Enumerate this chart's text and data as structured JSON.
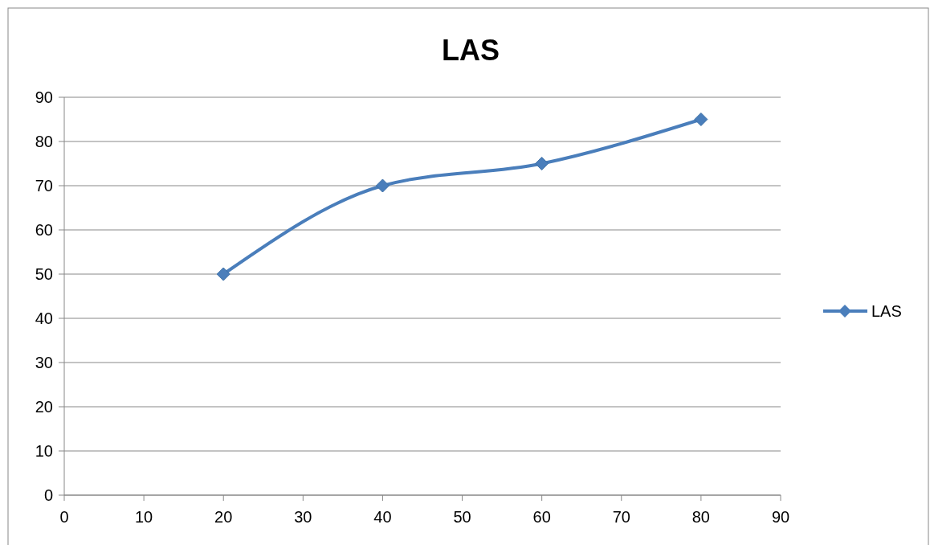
{
  "chart_data": {
    "type": "line",
    "title": "LAS",
    "x": [
      20,
      40,
      60,
      80
    ],
    "series": [
      {
        "name": "LAS",
        "color": "#4a7ebb",
        "values": [
          50,
          70,
          75,
          85
        ]
      }
    ],
    "xlim": [
      0,
      90
    ],
    "xticks": [
      0,
      10,
      20,
      30,
      40,
      50,
      60,
      70,
      80,
      90
    ],
    "ylim": [
      0,
      90
    ],
    "yticks": [
      0,
      10,
      20,
      30,
      40,
      50,
      60,
      70,
      80,
      90
    ],
    "grid": "y",
    "legend": "right",
    "marker": "diamond",
    "line_style": "solid"
  }
}
